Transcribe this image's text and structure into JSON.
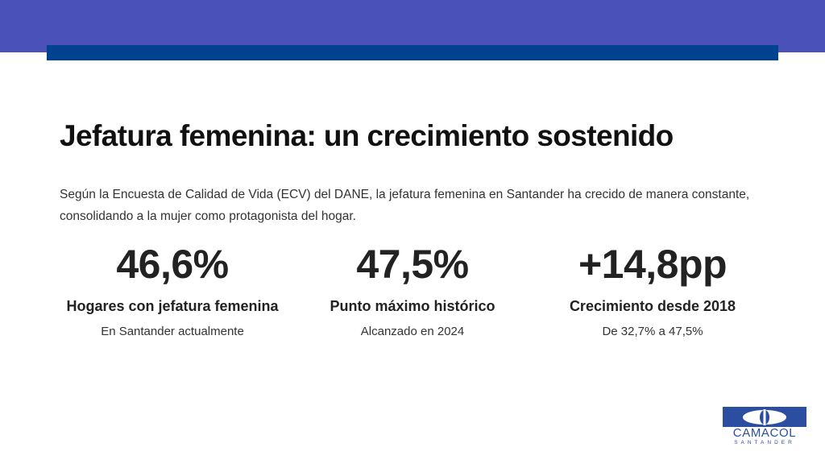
{
  "title": "Jefatura femenina: un crecimiento sostenido",
  "intro": "Según la Encuesta de Calidad de Vida (ECV) del DANE, la jefatura femenina en Santander ha crecido de manera constante, consolidando a la mujer como protagonista del hogar.",
  "stats": [
    {
      "value": "46,6%",
      "label": "Hogares con jefatura femenina",
      "sub": "En Santander actualmente"
    },
    {
      "value": "47,5%",
      "label": "Punto máximo histórico",
      "sub": "Alcanzado en 2024"
    },
    {
      "value": "+14,8pp",
      "label": "Crecimiento desde 2018",
      "sub": "De 32,7% a 47,5%"
    }
  ],
  "logo": {
    "name": "CAMACOL",
    "city": "SANTANDER"
  },
  "colors": {
    "band": "#4a52b9",
    "bar": "#004190",
    "logo": "#2b4ea1"
  }
}
